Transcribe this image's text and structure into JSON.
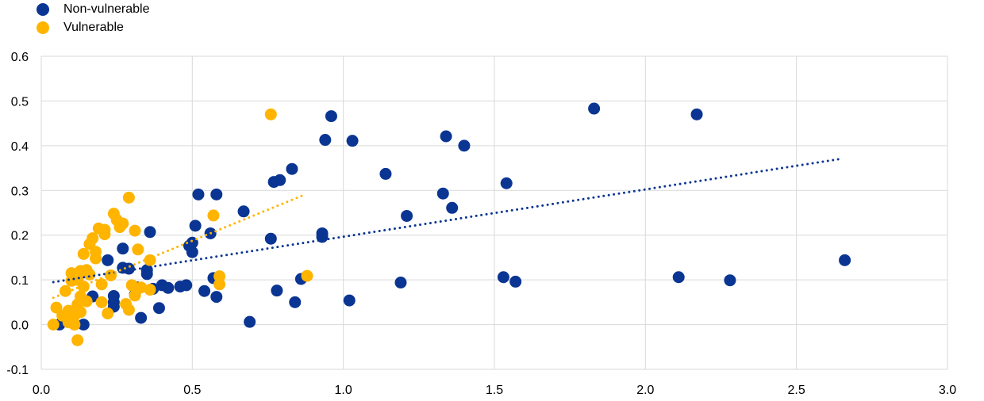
{
  "chart_data": {
    "type": "scatter",
    "title": "",
    "xlabel": "",
    "ylabel": "",
    "xlim": [
      0.0,
      3.0
    ],
    "ylim": [
      -0.1,
      0.6
    ],
    "x_ticks": [
      "0.0",
      "0.5",
      "1.0",
      "1.5",
      "2.0",
      "2.5",
      "3.0"
    ],
    "y_ticks": [
      "-0.1",
      "0.0",
      "0.1",
      "0.2",
      "0.3",
      "0.4",
      "0.5",
      "0.6"
    ],
    "x_tick_values": [
      0,
      0.5,
      1.0,
      1.5,
      2.0,
      2.5,
      3.0
    ],
    "y_tick_values": [
      -0.1,
      0,
      0.1,
      0.2,
      0.3,
      0.4,
      0.5,
      0.6
    ],
    "grid": true,
    "legend_position": "top-left",
    "series": [
      {
        "name": "Non-vulnerable",
        "color": "#0A3593",
        "trendline": {
          "x": [
            0.04,
            2.65
          ],
          "y": [
            0.095,
            0.371
          ]
        },
        "points": [
          [
            0.06,
            0.0
          ],
          [
            0.14,
            0.0
          ],
          [
            0.17,
            0.063
          ],
          [
            0.22,
            0.144
          ],
          [
            0.24,
            0.064
          ],
          [
            0.24,
            0.04
          ],
          [
            0.24,
            0.05
          ],
          [
            0.27,
            0.17
          ],
          [
            0.27,
            0.127
          ],
          [
            0.29,
            0.125
          ],
          [
            0.31,
            0.067
          ],
          [
            0.32,
            0.083
          ],
          [
            0.33,
            0.015
          ],
          [
            0.35,
            0.113
          ],
          [
            0.35,
            0.122
          ],
          [
            0.36,
            0.207
          ],
          [
            0.37,
            0.08
          ],
          [
            0.39,
            0.037
          ],
          [
            0.4,
            0.088
          ],
          [
            0.42,
            0.082
          ],
          [
            0.46,
            0.085
          ],
          [
            0.48,
            0.088
          ],
          [
            0.49,
            0.176
          ],
          [
            0.5,
            0.183
          ],
          [
            0.5,
            0.162
          ],
          [
            0.51,
            0.221
          ],
          [
            0.52,
            0.291
          ],
          [
            0.54,
            0.075
          ],
          [
            0.56,
            0.204
          ],
          [
            0.57,
            0.104
          ],
          [
            0.58,
            0.062
          ],
          [
            0.58,
            0.291
          ],
          [
            0.67,
            0.253
          ],
          [
            0.69,
            0.006
          ],
          [
            0.76,
            0.192
          ],
          [
            0.77,
            0.319
          ],
          [
            0.78,
            0.076
          ],
          [
            0.79,
            0.323
          ],
          [
            0.83,
            0.348
          ],
          [
            0.84,
            0.05
          ],
          [
            0.86,
            0.102
          ],
          [
            0.93,
            0.204
          ],
          [
            0.93,
            0.196
          ],
          [
            0.94,
            0.413
          ],
          [
            0.96,
            0.466
          ],
          [
            1.02,
            0.054
          ],
          [
            1.03,
            0.411
          ],
          [
            1.14,
            0.337
          ],
          [
            1.19,
            0.094
          ],
          [
            1.21,
            0.243
          ],
          [
            1.33,
            0.293
          ],
          [
            1.34,
            0.421
          ],
          [
            1.36,
            0.261
          ],
          [
            1.4,
            0.4
          ],
          [
            1.53,
            0.106
          ],
          [
            1.54,
            0.316
          ],
          [
            1.57,
            0.096
          ],
          [
            1.83,
            0.483
          ],
          [
            2.11,
            0.106
          ],
          [
            2.17,
            0.47
          ],
          [
            2.28,
            0.099
          ],
          [
            2.66,
            0.144
          ]
        ]
      },
      {
        "name": "Vulnerable",
        "color": "#FFB400",
        "trendline": {
          "x": [
            0.04,
            0.87
          ],
          "y": [
            0.06,
            0.29
          ]
        },
        "points": [
          [
            0.04,
            0.0
          ],
          [
            0.05,
            0.038
          ],
          [
            0.07,
            0.02
          ],
          [
            0.08,
            0.075
          ],
          [
            0.09,
            0.005
          ],
          [
            0.09,
            0.031
          ],
          [
            0.1,
            0.115
          ],
          [
            0.1,
            0.098
          ],
          [
            0.11,
            0.0
          ],
          [
            0.11,
            0.02
          ],
          [
            0.12,
            0.045
          ],
          [
            0.12,
            0.1
          ],
          [
            0.12,
            -0.035
          ],
          [
            0.13,
            0.12
          ],
          [
            0.13,
            0.063
          ],
          [
            0.13,
            0.028
          ],
          [
            0.14,
            0.158
          ],
          [
            0.14,
            0.085
          ],
          [
            0.15,
            0.122
          ],
          [
            0.15,
            0.052
          ],
          [
            0.16,
            0.112
          ],
          [
            0.16,
            0.18
          ],
          [
            0.17,
            0.193
          ],
          [
            0.18,
            0.163
          ],
          [
            0.18,
            0.148
          ],
          [
            0.19,
            0.215
          ],
          [
            0.2,
            0.05
          ],
          [
            0.2,
            0.09
          ],
          [
            0.21,
            0.202
          ],
          [
            0.21,
            0.212
          ],
          [
            0.22,
            0.025
          ],
          [
            0.23,
            0.11
          ],
          [
            0.24,
            0.248
          ],
          [
            0.25,
            0.234
          ],
          [
            0.26,
            0.218
          ],
          [
            0.27,
            0.226
          ],
          [
            0.28,
            0.046
          ],
          [
            0.29,
            0.033
          ],
          [
            0.29,
            0.284
          ],
          [
            0.3,
            0.088
          ],
          [
            0.31,
            0.21
          ],
          [
            0.31,
            0.065
          ],
          [
            0.32,
            0.168
          ],
          [
            0.33,
            0.083
          ],
          [
            0.36,
            0.078
          ],
          [
            0.36,
            0.144
          ],
          [
            0.57,
            0.244
          ],
          [
            0.59,
            0.108
          ],
          [
            0.59,
            0.09
          ],
          [
            0.76,
            0.47
          ],
          [
            0.88,
            0.109
          ]
        ]
      }
    ]
  }
}
